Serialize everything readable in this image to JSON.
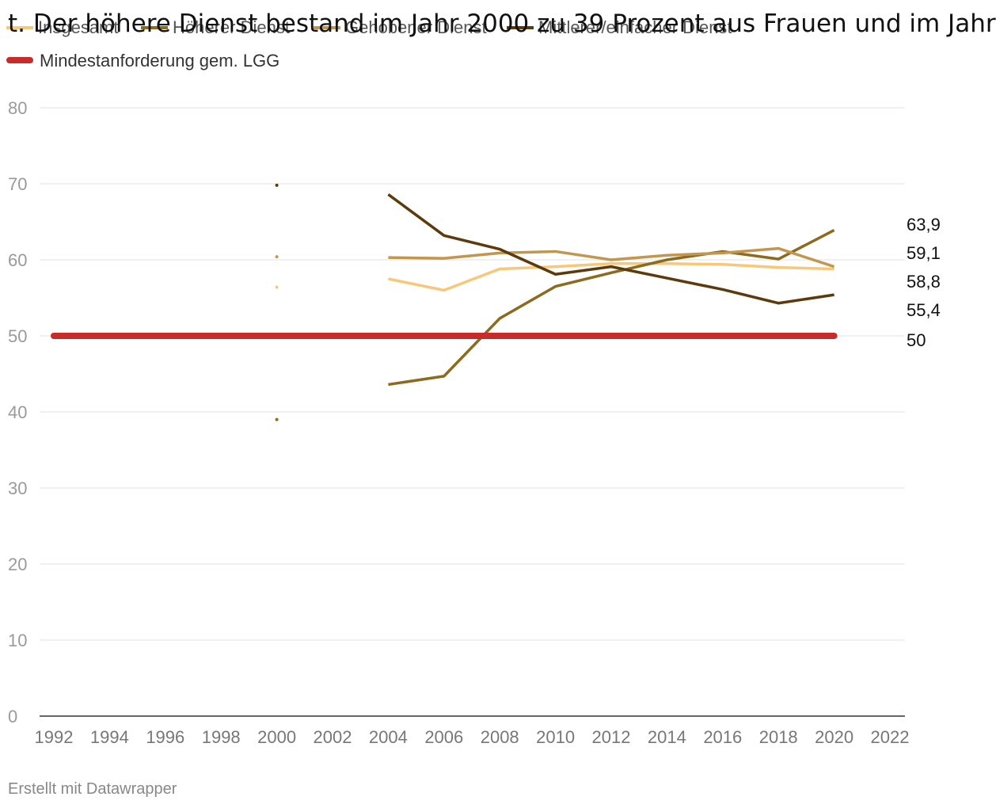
{
  "title_overlay": "t. Der höhere Dienst bestand im Jahr 2000 zu 39 Prozent aus Frauen und im Jahr",
  "credit": "Erstellt mit Datawrapper",
  "chart_data": {
    "type": "line",
    "xlabel": "",
    "ylabel": "",
    "xlim": [
      1992,
      2022
    ],
    "ylim": [
      0,
      80
    ],
    "x_ticks": [
      "1992",
      "1994",
      "1996",
      "1998",
      "2000",
      "2002",
      "2004",
      "2006",
      "2008",
      "2010",
      "2012",
      "2014",
      "2016",
      "2018",
      "2020",
      "2022"
    ],
    "y_ticks": [
      "0",
      "10",
      "20",
      "30",
      "40",
      "50",
      "60",
      "70",
      "80"
    ],
    "grid": true,
    "legend": "top-left",
    "series": [
      {
        "name": "Insgesamt",
        "color": "#f7c77a",
        "points": [
          [
            2000,
            56.4
          ],
          [
            2004,
            57.5
          ],
          [
            2006,
            56.0
          ],
          [
            2008,
            58.8
          ],
          [
            2010,
            59.1
          ],
          [
            2012,
            59.5
          ],
          [
            2014,
            59.5
          ],
          [
            2016,
            59.4
          ],
          [
            2018,
            59.0
          ],
          [
            2020,
            58.8
          ]
        ],
        "end_label": "58,8"
      },
      {
        "name": "Höherer Dienst",
        "color": "#8c6a1e",
        "points": [
          [
            2000,
            39.0
          ],
          [
            2004,
            43.6
          ],
          [
            2006,
            44.7
          ],
          [
            2008,
            52.3
          ],
          [
            2010,
            56.5
          ],
          [
            2012,
            58.3
          ],
          [
            2014,
            60.0
          ],
          [
            2016,
            61.1
          ],
          [
            2018,
            60.1
          ],
          [
            2020,
            63.9
          ]
        ],
        "end_label": "63,9"
      },
      {
        "name": "Gehobener Dienst",
        "color": "#c39650",
        "points": [
          [
            2000,
            60.4
          ],
          [
            2004,
            60.3
          ],
          [
            2006,
            60.2
          ],
          [
            2008,
            60.9
          ],
          [
            2010,
            61.1
          ],
          [
            2012,
            60.0
          ],
          [
            2014,
            60.6
          ],
          [
            2016,
            60.9
          ],
          [
            2018,
            61.5
          ],
          [
            2020,
            59.1
          ]
        ],
        "end_label": "59,1"
      },
      {
        "name": "Mittlerer/einfacher Dienst",
        "color": "#5c3a0c",
        "points": [
          [
            2000,
            69.8
          ],
          [
            2004,
            68.6
          ],
          [
            2006,
            63.2
          ],
          [
            2008,
            61.4
          ],
          [
            2010,
            58.1
          ],
          [
            2012,
            59.1
          ],
          [
            2014,
            57.6
          ],
          [
            2016,
            56.1
          ],
          [
            2018,
            54.3
          ],
          [
            2020,
            55.4
          ]
        ],
        "end_label": "55,4"
      },
      {
        "name": "Mindestanforderung gem. LGG",
        "color": "#c92a2a",
        "points": [
          [
            1992,
            50
          ],
          [
            2020,
            50
          ]
        ],
        "end_label": "50",
        "thick": true
      }
    ]
  }
}
